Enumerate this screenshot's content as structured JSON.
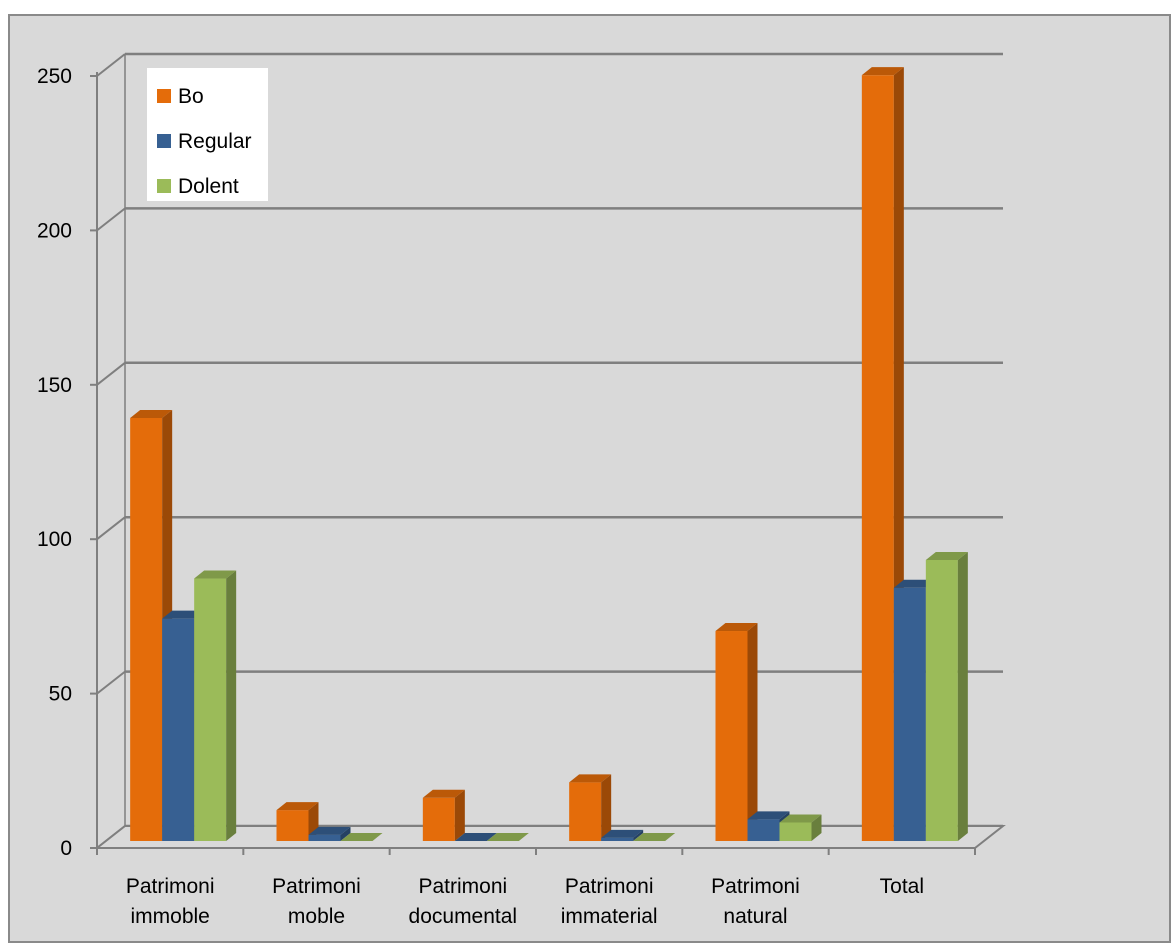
{
  "chart_data": {
    "type": "bar",
    "title": "",
    "xlabel": "",
    "ylabel": "",
    "ylim": [
      0,
      250
    ],
    "yticks": [
      0,
      50,
      100,
      150,
      200,
      250
    ],
    "grid": true,
    "legend_position": "top-left",
    "categories": [
      [
        "Patrimoni",
        "immoble"
      ],
      [
        "Patrimoni",
        "moble"
      ],
      [
        "Patrimoni",
        "documental"
      ],
      [
        "Patrimoni",
        "immaterial"
      ],
      [
        "Patrimoni",
        "natural"
      ],
      [
        "Total"
      ]
    ],
    "series": [
      {
        "name": "Bo",
        "color": "#e46c0a",
        "values": [
          137,
          10,
          14,
          19,
          68,
          248
        ]
      },
      {
        "name": "Regular",
        "color": "#376092",
        "values": [
          72,
          2,
          0,
          1,
          7,
          82
        ]
      },
      {
        "name": "Dolent",
        "color": "#9bbb59",
        "values": [
          85,
          0,
          0,
          0,
          6,
          91
        ]
      }
    ]
  }
}
